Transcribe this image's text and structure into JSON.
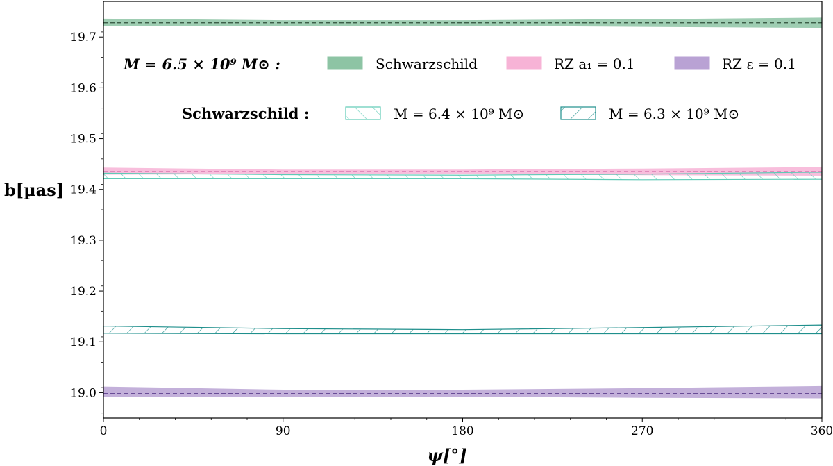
{
  "chart_data": {
    "type": "area",
    "xlabel": "ψ[°]",
    "ylabel": "b[µas]",
    "xlim": [
      0,
      360
    ],
    "ylim": [
      18.95,
      19.77
    ],
    "xticks": [
      0,
      90,
      180,
      270,
      360
    ],
    "xtick_labels": [
      "0",
      "90",
      "180",
      "270",
      "360"
    ],
    "yticks": [
      19.0,
      19.1,
      19.2,
      19.3,
      19.4,
      19.5,
      19.6,
      19.7
    ],
    "ytick_labels": [
      "19.0",
      "19.1",
      "19.2",
      "19.3",
      "19.4",
      "19.5",
      "19.6",
      "19.7"
    ],
    "series": [
      {
        "name": "Schwarzschild",
        "style": "filled",
        "color": "#8dc4a4",
        "line_color": "#2f4f3a",
        "center": 19.728,
        "x": [
          0,
          90,
          180,
          270,
          360
        ],
        "lower": [
          19.722,
          19.722,
          19.722,
          19.72,
          19.718
        ],
        "upper": [
          19.736,
          19.733,
          19.733,
          19.735,
          19.738
        ]
      },
      {
        "name": "RZ a1 = 0.1",
        "style": "filled",
        "color": "#f7b3d6",
        "line_color": "#c8559a",
        "center": 19.435,
        "x": [
          0,
          90,
          180,
          270,
          360
        ],
        "lower": [
          19.429,
          19.43,
          19.43,
          19.428,
          19.427
        ],
        "upper": [
          19.443,
          19.439,
          19.439,
          19.441,
          19.444
        ]
      },
      {
        "name": "RZ ε = 0.1",
        "style": "filled",
        "color": "#b9a2d4",
        "line_color": "#4b2a80",
        "center": 18.998,
        "x": [
          0,
          90,
          180,
          270,
          360
        ],
        "lower": [
          18.991,
          18.992,
          18.992,
          18.99,
          18.989
        ],
        "upper": [
          19.012,
          19.006,
          19.006,
          19.009,
          19.013
        ]
      },
      {
        "name": "M = 6.4 × 10^9 M⊙",
        "style": "hatched-back",
        "color": "#5fcab6",
        "x": [
          0,
          90,
          180,
          270,
          360
        ],
        "lower": [
          19.421,
          19.421,
          19.421,
          19.419,
          19.42
        ],
        "upper": [
          19.432,
          19.429,
          19.428,
          19.43,
          19.434
        ]
      },
      {
        "name": "M = 6.3 × 10^9 M⊙",
        "style": "hatched-forward",
        "color": "#1f8f8c",
        "x": [
          0,
          90,
          180,
          270,
          360
        ],
        "lower": [
          19.117,
          19.116,
          19.116,
          19.116,
          19.116
        ],
        "upper": [
          19.131,
          19.126,
          19.124,
          19.128,
          19.133
        ]
      }
    ],
    "legend": {
      "row1_title": "M = 6.5 × 10⁹ M⊙ :",
      "row1_entries": [
        "Schwarzschild",
        "RZ a₁ = 0.1",
        "RZ ε = 0.1"
      ],
      "row2_title": "Schwarzschild :",
      "row2_entries": [
        "M = 6.4 × 10⁹ M⊙",
        "M = 6.3 × 10⁹ M⊙"
      ],
      "placement": "top"
    }
  }
}
